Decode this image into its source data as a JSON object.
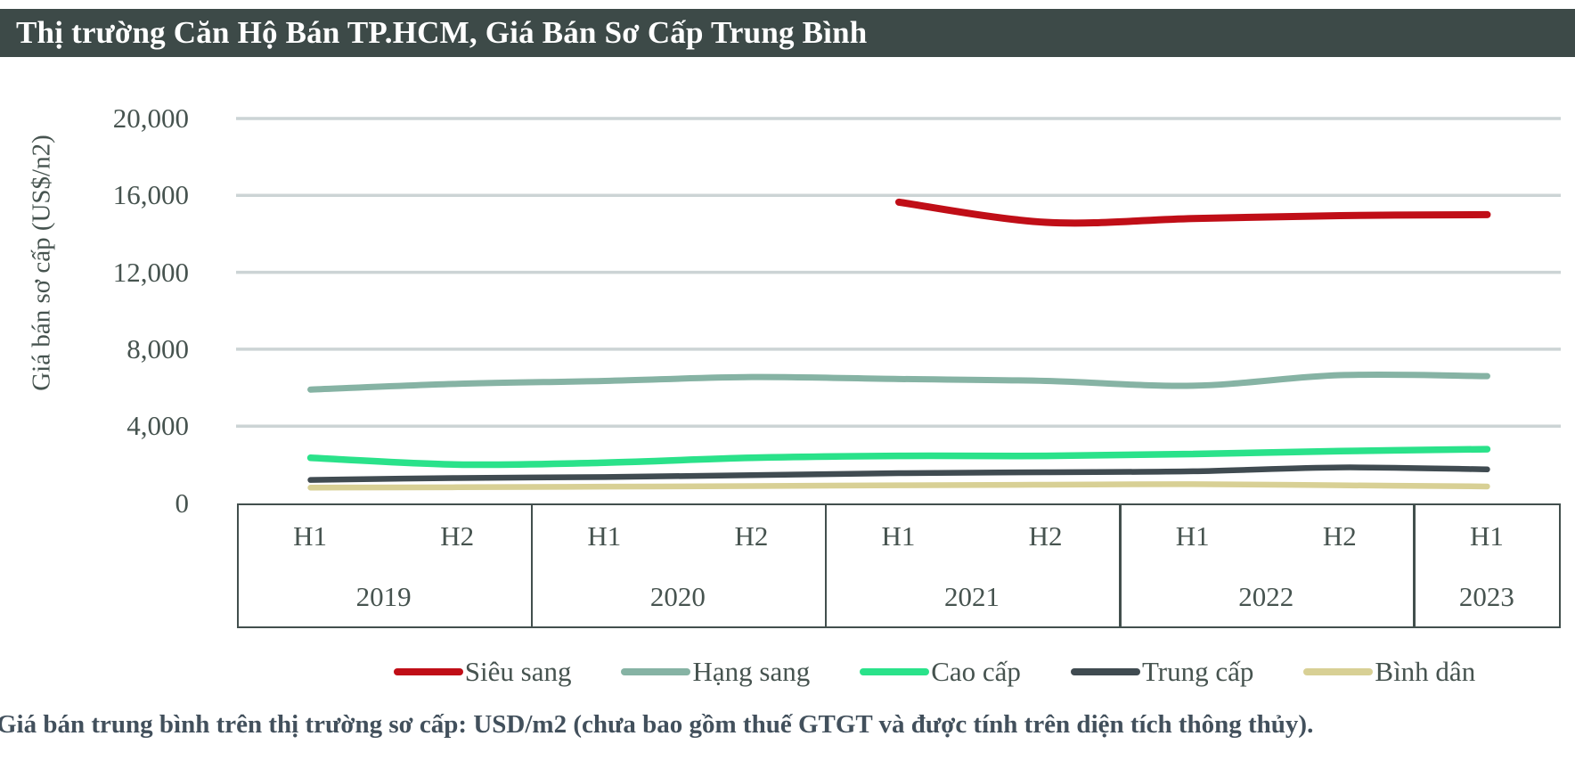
{
  "header": {
    "title": "Thị trường Căn Hộ Bán TP.HCM, Giá Bán Sơ Cấp Trung Bình"
  },
  "y_axis": {
    "title": "Giá bán sơ cấp (US$/n2)",
    "tick_labels": [
      "0",
      "4,000",
      "8,000",
      "12,000",
      "16,000",
      "20,000"
    ]
  },
  "x_axis": {
    "half_labels": [
      "H1",
      "H2",
      "H1",
      "H2",
      "H1",
      "H2",
      "H1",
      "H2",
      "H1"
    ],
    "year_groups": [
      {
        "label": "2019",
        "spans": 2
      },
      {
        "label": "2020",
        "spans": 2
      },
      {
        "label": "2021",
        "spans": 2
      },
      {
        "label": "2022",
        "spans": 2
      },
      {
        "label": "2023",
        "spans": 1
      }
    ]
  },
  "legend": {
    "items": [
      {
        "label": "Siêu sang",
        "color": "#c00e17"
      },
      {
        "label": "Hạng sang",
        "color": "#86b3a4"
      },
      {
        "label": "Cao cấp",
        "color": "#2ae28a"
      },
      {
        "label": "Trung cấp",
        "color": "#404b51"
      },
      {
        "label": "Bình dân",
        "color": "#d8d095"
      }
    ]
  },
  "footnote": {
    "text": "Giá bán trung bình trên thị trường sơ cấp: USD/m2 (chưa bao gồm thuế GTGT và được tính trên diện tích thông thủy)."
  },
  "chart_data": {
    "type": "line",
    "title": "Thị trường Căn Hộ Bán TP.HCM, Giá Bán Sơ Cấp Trung Bình",
    "ylabel": "Giá bán sơ cấp (US$/n2)",
    "ylim": [
      0,
      20000
    ],
    "ytick_step": 4000,
    "grid": "horizontal",
    "legend_position": "bottom",
    "categories": [
      "H1 2019",
      "H2 2019",
      "H1 2020",
      "H2 2020",
      "H1 2021",
      "H2 2021",
      "H1 2022",
      "H2 2022",
      "H1 2023"
    ],
    "series": [
      {
        "name": "Siêu sang",
        "color": "#c00e17",
        "values": [
          null,
          null,
          null,
          null,
          15650,
          14600,
          14800,
          14950,
          15000
        ]
      },
      {
        "name": "Hạng sang",
        "color": "#86b3a4",
        "values": [
          5900,
          6200,
          6350,
          6550,
          6450,
          6350,
          6100,
          6650,
          6600
        ]
      },
      {
        "name": "Cao cấp",
        "color": "#2ae28a",
        "values": [
          2350,
          2000,
          2100,
          2350,
          2450,
          2450,
          2550,
          2700,
          2800
        ]
      },
      {
        "name": "Trung cấp",
        "color": "#404b51",
        "values": [
          1200,
          1300,
          1350,
          1450,
          1550,
          1600,
          1650,
          1850,
          1750
        ]
      },
      {
        "name": "Bình dân",
        "color": "#d8d095",
        "values": [
          800,
          820,
          850,
          880,
          920,
          950,
          980,
          920,
          860
        ]
      }
    ]
  },
  "colors": {
    "header_bg": "#3d4a48",
    "text": "#46534f",
    "gridline": "#ccd4d5",
    "axis_box": "#424f4d"
  }
}
